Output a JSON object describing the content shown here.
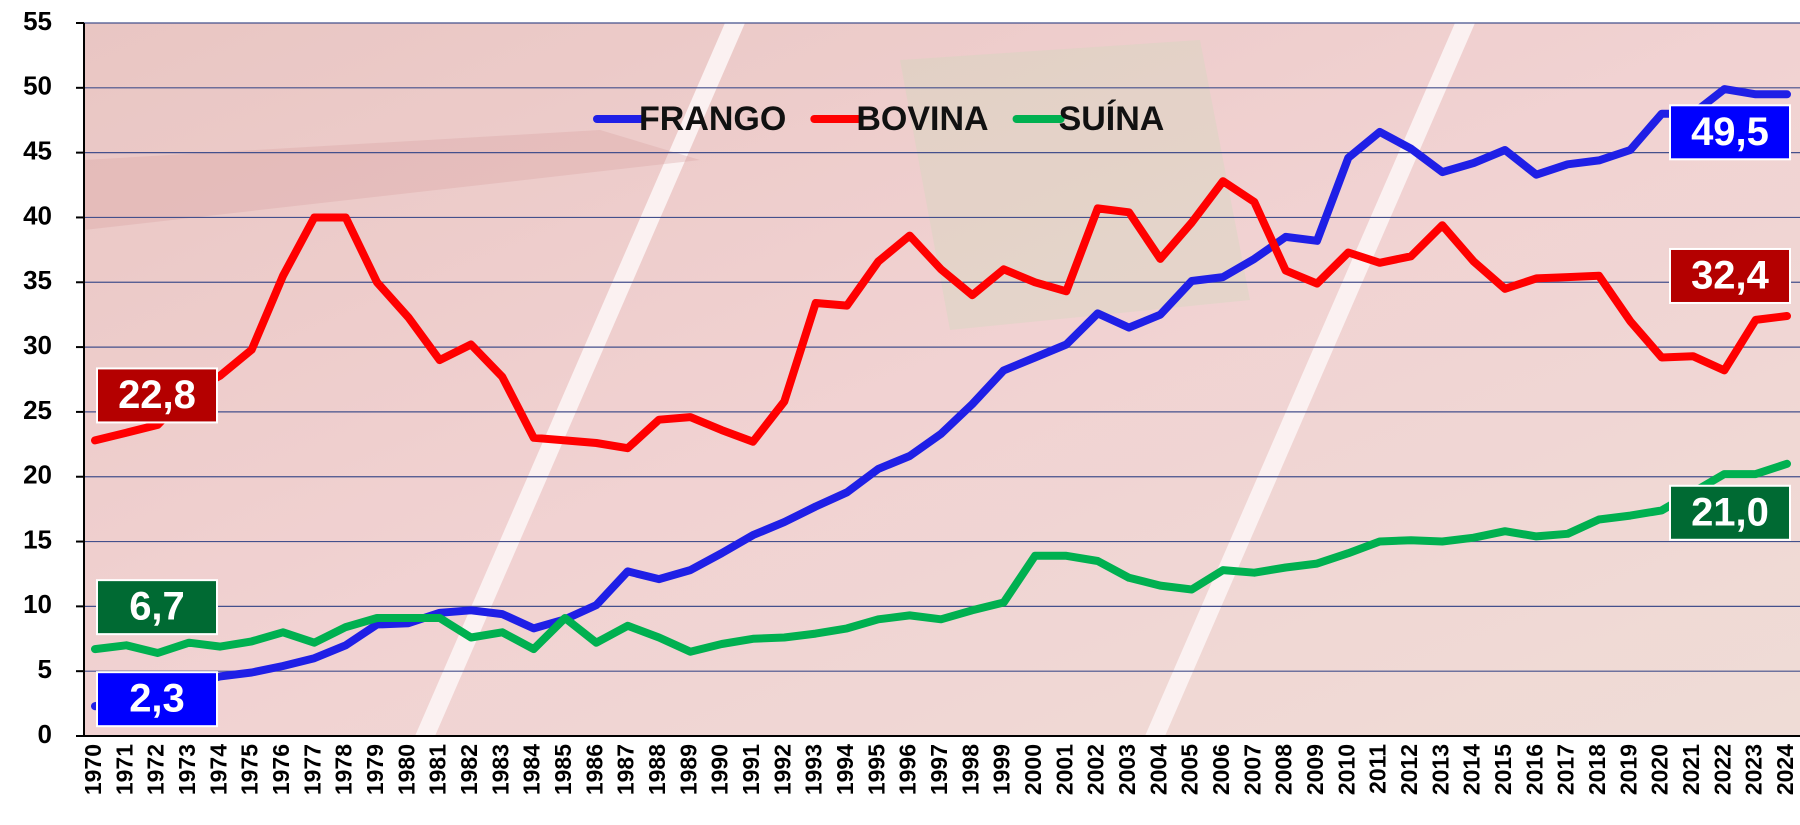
{
  "chart_data": {
    "type": "line",
    "categories": [
      "1970",
      "1971",
      "1972",
      "1973",
      "1974",
      "1975",
      "1976",
      "1977",
      "1978",
      "1979",
      "1980",
      "1981",
      "1982",
      "1983",
      "1984",
      "1985",
      "1986",
      "1987",
      "1988",
      "1989",
      "1990",
      "1991",
      "1992",
      "1993",
      "1994",
      "1995",
      "1996",
      "1997",
      "1998",
      "1999",
      "2000",
      "2001",
      "2002",
      "2003",
      "2004",
      "2005",
      "2006",
      "2007",
      "2008",
      "2009",
      "2010",
      "2011",
      "2012",
      "2013",
      "2014",
      "2015",
      "2016",
      "2017",
      "2018",
      "2019",
      "2020",
      "2021",
      "2022",
      "2023",
      "2024"
    ],
    "series": [
      {
        "name": "FRANGO",
        "color": "#1f1fe6",
        "values": [
          2.3,
          2.8,
          3.3,
          4.0,
          4.6,
          4.9,
          5.4,
          6.0,
          7.0,
          8.6,
          8.7,
          9.5,
          9.7,
          9.4,
          8.3,
          9.0,
          10.1,
          12.7,
          12.1,
          12.8,
          14.1,
          15.5,
          16.5,
          17.7,
          18.8,
          20.6,
          21.6,
          23.3,
          25.6,
          28.2,
          29.2,
          30.2,
          32.6,
          31.5,
          32.5,
          35.1,
          35.4,
          36.8,
          38.5,
          38.2,
          44.6,
          46.6,
          45.3,
          43.5,
          44.2,
          45.2,
          43.3,
          44.1,
          44.4,
          45.2,
          48.0,
          48.0,
          49.9,
          49.5,
          49.5
        ],
        "value_labels": [
          "2,3",
          null,
          null,
          null,
          null,
          null,
          null,
          null,
          null,
          null,
          null,
          null,
          null,
          null,
          null,
          null,
          null,
          null,
          null,
          null,
          null,
          null,
          null,
          null,
          null,
          null,
          null,
          null,
          null,
          null,
          null,
          null,
          null,
          null,
          null,
          null,
          null,
          null,
          null,
          null,
          null,
          null,
          null,
          null,
          null,
          null,
          null,
          null,
          null,
          null,
          null,
          null,
          null,
          null,
          "49,5"
        ]
      },
      {
        "name": "BOVINA",
        "color": "#ff0000",
        "values": [
          22.8,
          23.4,
          24.0,
          26.5,
          27.8,
          29.8,
          35.5,
          40.0,
          40.0,
          35.0,
          32.3,
          29.0,
          30.2,
          27.7,
          23.0,
          22.8,
          22.6,
          22.2,
          24.4,
          24.6,
          23.6,
          22.7,
          25.8,
          33.4,
          33.2,
          36.6,
          38.6,
          36.0,
          34.0,
          36.0,
          35.0,
          34.3,
          40.7,
          40.4,
          36.8,
          39.6,
          42.8,
          41.2,
          35.9,
          34.9,
          37.3,
          36.5,
          37.0,
          39.4,
          36.6,
          34.5,
          35.3,
          35.4,
          35.5,
          32.0,
          29.2,
          29.3,
          28.2,
          32.1,
          32.4
        ],
        "value_labels": [
          "22,8",
          null,
          null,
          null,
          null,
          null,
          null,
          null,
          null,
          null,
          null,
          null,
          null,
          null,
          null,
          null,
          null,
          null,
          null,
          null,
          null,
          null,
          null,
          null,
          null,
          null,
          null,
          null,
          null,
          null,
          null,
          null,
          null,
          null,
          null,
          null,
          null,
          null,
          null,
          null,
          null,
          null,
          null,
          null,
          null,
          null,
          null,
          null,
          null,
          null,
          null,
          null,
          null,
          null,
          "32,4"
        ]
      },
      {
        "name": "SUÍNA",
        "color": "#00b050",
        "values": [
          6.7,
          7.0,
          6.4,
          7.2,
          6.9,
          7.3,
          8.0,
          7.2,
          8.4,
          9.1,
          9.1,
          9.1,
          7.6,
          8.0,
          6.7,
          9.1,
          7.2,
          8.5,
          7.6,
          6.5,
          7.1,
          7.5,
          7.6,
          7.9,
          8.3,
          9.0,
          9.3,
          9.0,
          9.7,
          10.3,
          13.9,
          13.9,
          13.5,
          12.2,
          11.6,
          11.3,
          12.8,
          12.6,
          13.0,
          13.3,
          14.1,
          15.0,
          15.1,
          15.0,
          15.3,
          15.8,
          15.4,
          15.6,
          16.7,
          17.0,
          17.4,
          18.8,
          20.2,
          20.2,
          21.0
        ],
        "value_labels": [
          "6,7",
          null,
          null,
          null,
          null,
          null,
          null,
          null,
          null,
          null,
          null,
          null,
          null,
          null,
          null,
          null,
          null,
          null,
          null,
          null,
          null,
          null,
          null,
          null,
          null,
          null,
          null,
          null,
          null,
          null,
          null,
          null,
          null,
          null,
          null,
          null,
          null,
          null,
          null,
          null,
          null,
          null,
          null,
          null,
          null,
          null,
          null,
          null,
          null,
          null,
          null,
          null,
          null,
          null,
          "21,0"
        ]
      }
    ],
    "ylim": [
      0,
      55
    ],
    "yticks": [
      0,
      5,
      10,
      15,
      20,
      25,
      30,
      35,
      40,
      45,
      50,
      55
    ],
    "grid": true
  }
}
